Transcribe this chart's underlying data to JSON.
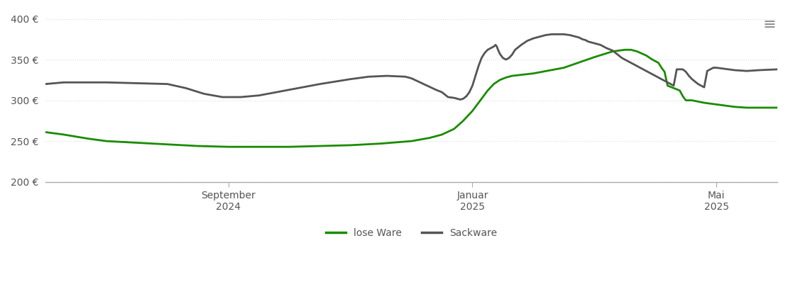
{
  "title": "",
  "background_color": "#ffffff",
  "line_lose_color": "#1a8c00",
  "line_sack_color": "#555555",
  "line_width": 2.0,
  "ylim": [
    200,
    410
  ],
  "yticks": [
    200,
    250,
    300,
    350,
    400
  ],
  "legend_lose": "lose Ware",
  "legend_sack": "Sackware",
  "grid_color": "#dddddd",
  "axis_color": "#aaaaaa",
  "font_color": "#555555",
  "x_tick_labels": [
    "September\n2024",
    "Januar\n2025",
    "Mai\n2025"
  ],
  "x_tick_positions": [
    3,
    7,
    11
  ],
  "lose_data": [
    [
      0,
      261
    ],
    [
      0.3,
      258
    ],
    [
      0.7,
      253
    ],
    [
      1.0,
      250
    ],
    [
      1.5,
      248
    ],
    [
      2.0,
      246
    ],
    [
      2.5,
      244
    ],
    [
      3.0,
      243
    ],
    [
      3.5,
      243
    ],
    [
      4.0,
      243
    ],
    [
      4.5,
      244
    ],
    [
      5.0,
      245
    ],
    [
      5.5,
      247
    ],
    [
      6.0,
      250
    ],
    [
      6.3,
      254
    ],
    [
      6.5,
      258
    ],
    [
      6.7,
      265
    ],
    [
      6.85,
      275
    ],
    [
      7.0,
      287
    ],
    [
      7.15,
      302
    ],
    [
      7.25,
      312
    ],
    [
      7.35,
      320
    ],
    [
      7.45,
      325
    ],
    [
      7.55,
      328
    ],
    [
      7.65,
      330
    ],
    [
      8.0,
      333
    ],
    [
      8.5,
      340
    ],
    [
      9.0,
      353
    ],
    [
      9.3,
      360
    ],
    [
      9.5,
      362
    ],
    [
      9.6,
      362
    ],
    [
      9.7,
      360
    ],
    [
      9.85,
      355
    ],
    [
      9.95,
      350
    ],
    [
      10.05,
      346
    ],
    [
      10.1,
      340
    ],
    [
      10.15,
      335
    ],
    [
      10.2,
      318
    ],
    [
      10.3,
      315
    ],
    [
      10.4,
      312
    ],
    [
      10.45,
      305
    ],
    [
      10.5,
      300
    ],
    [
      10.6,
      300
    ],
    [
      10.8,
      297
    ],
    [
      11.0,
      295
    ],
    [
      11.3,
      292
    ],
    [
      11.5,
      291
    ],
    [
      12.0,
      291
    ]
  ],
  "sack_data": [
    [
      0,
      320
    ],
    [
      0.3,
      322
    ],
    [
      0.7,
      322
    ],
    [
      1.0,
      322
    ],
    [
      1.5,
      321
    ],
    [
      2.0,
      320
    ],
    [
      2.3,
      315
    ],
    [
      2.6,
      308
    ],
    [
      2.9,
      304
    ],
    [
      3.2,
      304
    ],
    [
      3.5,
      306
    ],
    [
      4.0,
      313
    ],
    [
      4.5,
      320
    ],
    [
      5.0,
      326
    ],
    [
      5.3,
      329
    ],
    [
      5.6,
      330
    ],
    [
      5.9,
      329
    ],
    [
      6.0,
      327
    ],
    [
      6.2,
      320
    ],
    [
      6.4,
      313
    ],
    [
      6.5,
      310
    ],
    [
      6.6,
      304
    ],
    [
      6.7,
      303
    ],
    [
      6.75,
      302
    ],
    [
      6.8,
      301
    ],
    [
      6.85,
      302
    ],
    [
      6.9,
      305
    ],
    [
      6.95,
      310
    ],
    [
      7.0,
      318
    ],
    [
      7.05,
      330
    ],
    [
      7.1,
      342
    ],
    [
      7.15,
      352
    ],
    [
      7.2,
      358
    ],
    [
      7.25,
      362
    ],
    [
      7.3,
      364
    ],
    [
      7.35,
      366
    ],
    [
      7.38,
      368
    ],
    [
      7.4,
      366
    ],
    [
      7.42,
      362
    ],
    [
      7.45,
      357
    ],
    [
      7.5,
      352
    ],
    [
      7.55,
      350
    ],
    [
      7.6,
      352
    ],
    [
      7.65,
      356
    ],
    [
      7.7,
      362
    ],
    [
      7.8,
      368
    ],
    [
      7.9,
      373
    ],
    [
      8.0,
      376
    ],
    [
      8.1,
      378
    ],
    [
      8.2,
      380
    ],
    [
      8.3,
      381
    ],
    [
      8.4,
      381
    ],
    [
      8.5,
      381
    ],
    [
      8.6,
      380
    ],
    [
      8.65,
      379
    ],
    [
      8.7,
      378
    ],
    [
      8.75,
      377
    ],
    [
      8.8,
      375
    ],
    [
      8.85,
      374
    ],
    [
      8.9,
      372
    ],
    [
      9.0,
      370
    ],
    [
      9.1,
      368
    ],
    [
      9.15,
      366
    ],
    [
      9.2,
      364
    ],
    [
      9.3,
      361
    ],
    [
      9.35,
      358
    ],
    [
      9.4,
      355
    ],
    [
      9.45,
      352
    ],
    [
      9.5,
      350
    ],
    [
      9.55,
      348
    ],
    [
      9.6,
      346
    ],
    [
      9.65,
      344
    ],
    [
      9.7,
      342
    ],
    [
      9.75,
      340
    ],
    [
      9.8,
      338
    ],
    [
      9.85,
      336
    ],
    [
      9.9,
      334
    ],
    [
      9.95,
      332
    ],
    [
      10.0,
      330
    ],
    [
      10.05,
      328
    ],
    [
      10.1,
      326
    ],
    [
      10.15,
      324
    ],
    [
      10.2,
      322
    ],
    [
      10.25,
      320
    ],
    [
      10.3,
      318
    ],
    [
      10.35,
      338
    ],
    [
      10.4,
      338
    ],
    [
      10.45,
      338
    ],
    [
      10.5,
      335
    ],
    [
      10.55,
      330
    ],
    [
      10.6,
      326
    ],
    [
      10.65,
      323
    ],
    [
      10.7,
      320
    ],
    [
      10.75,
      318
    ],
    [
      10.8,
      316
    ],
    [
      10.85,
      336
    ],
    [
      10.9,
      338
    ],
    [
      10.95,
      340
    ],
    [
      11.0,
      340
    ],
    [
      11.1,
      339
    ],
    [
      11.2,
      338
    ],
    [
      11.3,
      337
    ],
    [
      11.5,
      336
    ],
    [
      11.7,
      337
    ],
    [
      12.0,
      338
    ]
  ]
}
